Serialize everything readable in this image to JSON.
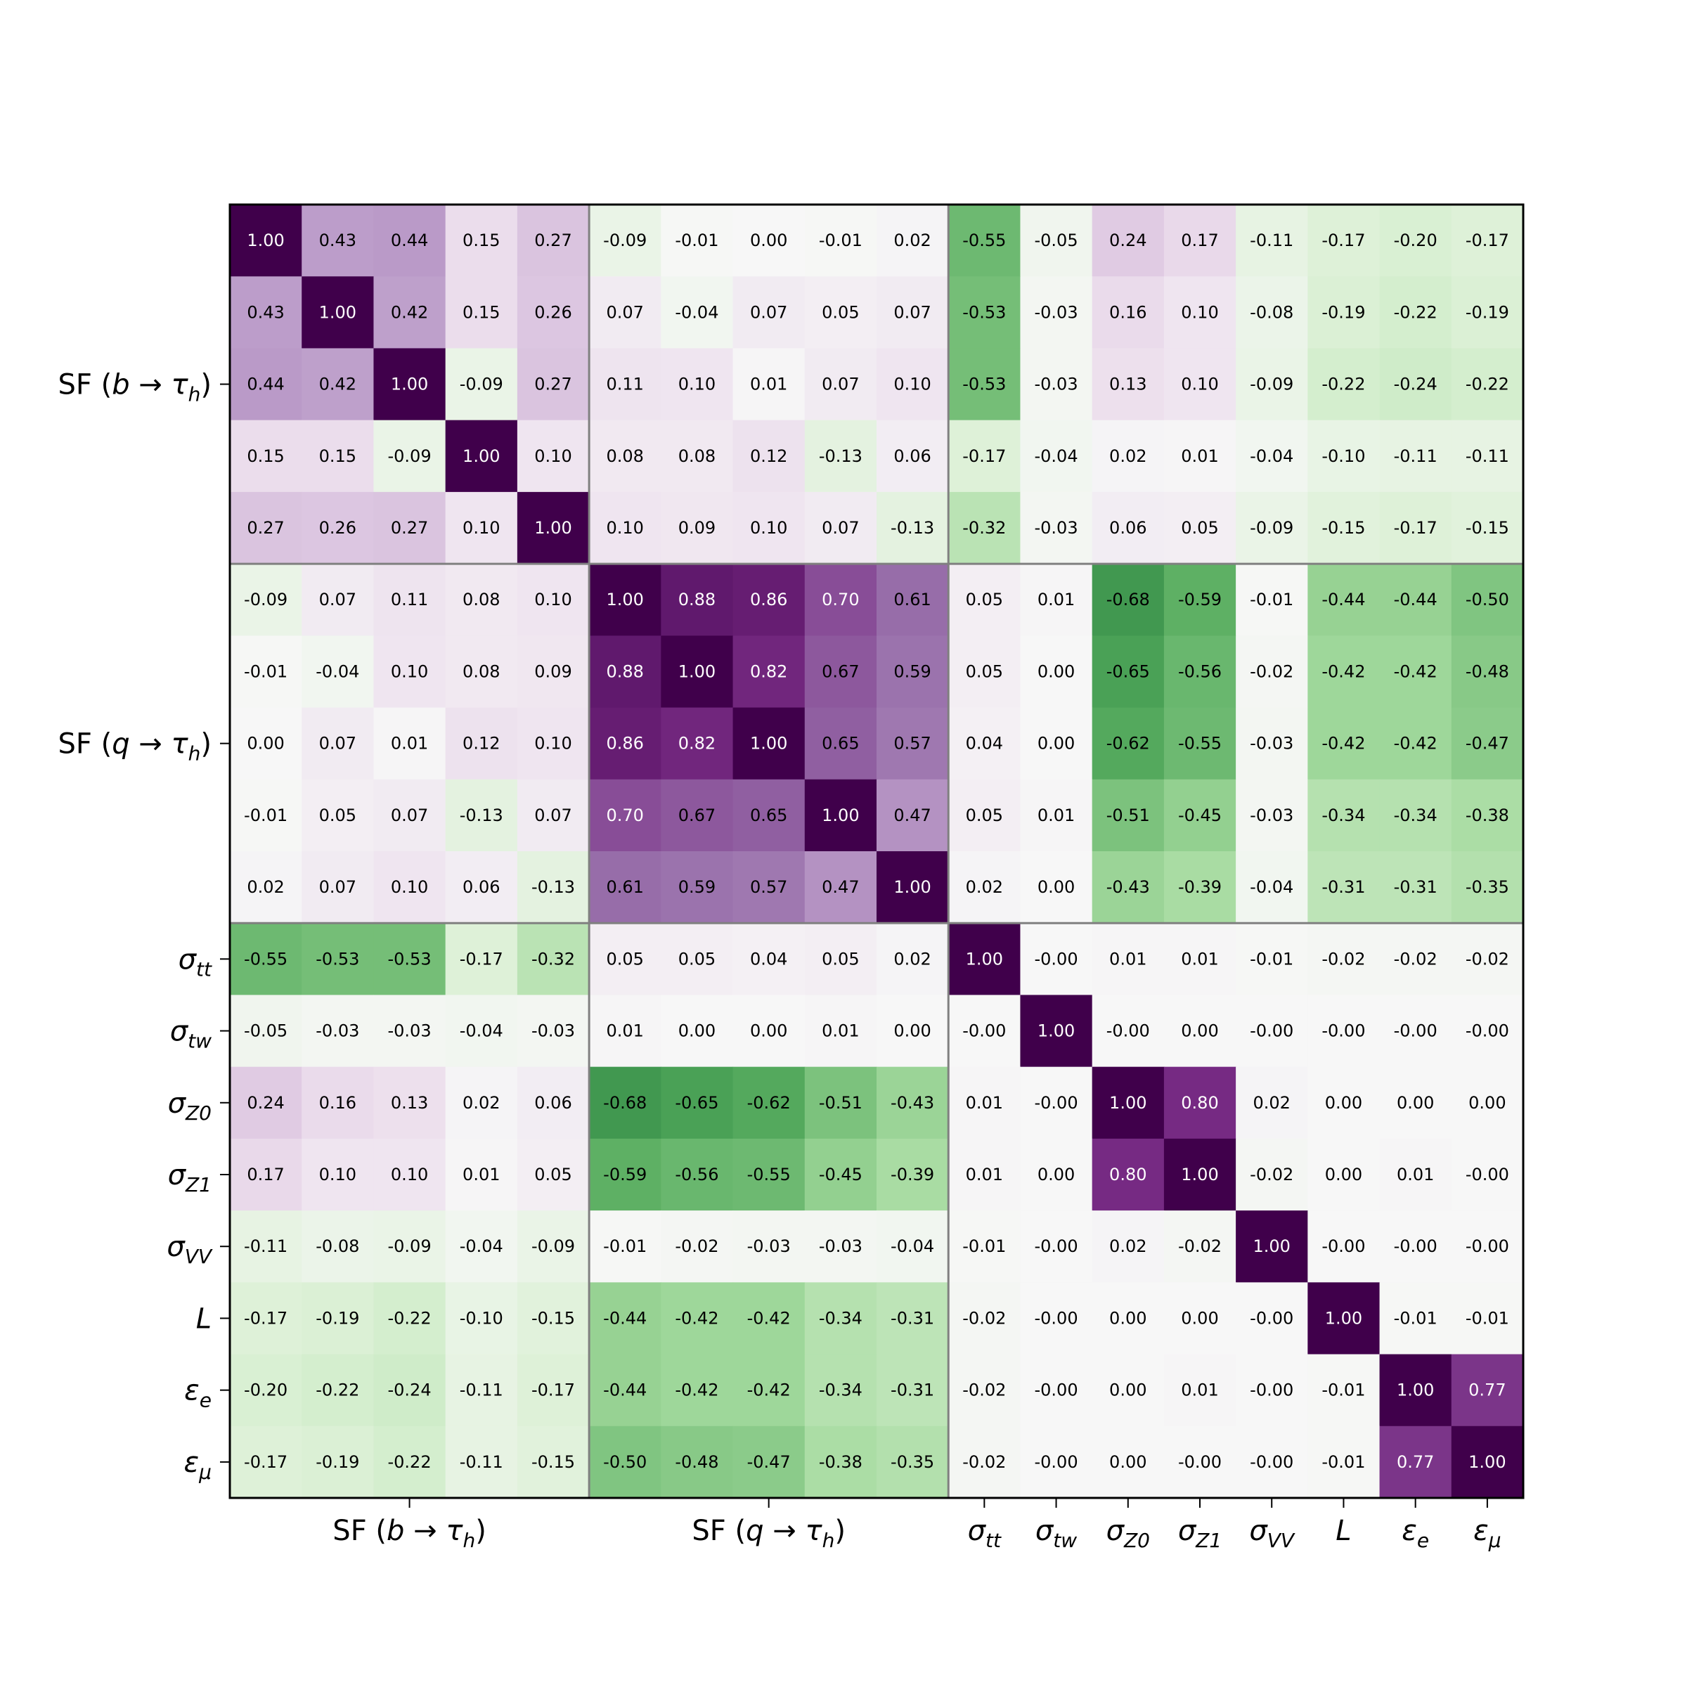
{
  "chart_data": {
    "type": "heatmap",
    "title": "",
    "colormap": "PRGn_r",
    "vmin": -1,
    "vmax": 1,
    "value_format": "2 decimals",
    "row_labels": [
      "",
      "",
      "SF (b → τh)",
      "",
      "",
      "",
      "",
      "SF (q → τh)",
      "",
      "",
      "σtt",
      "σtw",
      "σZ0",
      "σZ1",
      "σVV",
      "L",
      "εe",
      "εμ"
    ],
    "x_tick_labels": [
      "SF (b → τh)",
      "SF (q → τh)",
      "σtt",
      "σtw",
      "σZ0",
      "σZ1",
      "σVV",
      "L",
      "εe",
      "εμ"
    ],
    "y_tick_labels": [
      "SF (b → τh)",
      "SF (q → τh)",
      "σtt",
      "σtw",
      "σZ0",
      "σZ1",
      "σVV",
      "L",
      "εe",
      "εμ"
    ],
    "group_boundaries": [
      5,
      10
    ],
    "cell_labels": [
      [
        "1.00",
        "0.43",
        "0.44",
        "0.15",
        "0.27",
        "-0.09",
        "-0.01",
        "0.00",
        "-0.01",
        "0.02",
        "-0.55",
        "-0.05",
        "0.24",
        "0.17",
        "-0.11",
        "-0.17",
        "-0.20",
        "-0.17"
      ],
      [
        "0.43",
        "1.00",
        "0.42",
        "0.15",
        "0.26",
        "0.07",
        "-0.04",
        "0.07",
        "0.05",
        "0.07",
        "-0.53",
        "-0.03",
        "0.16",
        "0.10",
        "-0.08",
        "-0.19",
        "-0.22",
        "-0.19"
      ],
      [
        "0.44",
        "0.42",
        "1.00",
        "-0.09",
        "0.27",
        "0.11",
        "0.10",
        "0.01",
        "0.07",
        "0.10",
        "-0.53",
        "-0.03",
        "0.13",
        "0.10",
        "-0.09",
        "-0.22",
        "-0.24",
        "-0.22"
      ],
      [
        "0.15",
        "0.15",
        "-0.09",
        "1.00",
        "0.10",
        "0.08",
        "0.08",
        "0.12",
        "-0.13",
        "0.06",
        "-0.17",
        "-0.04",
        "0.02",
        "0.01",
        "-0.04",
        "-0.10",
        "-0.11",
        "-0.11"
      ],
      [
        "0.27",
        "0.26",
        "0.27",
        "0.10",
        "1.00",
        "0.10",
        "0.09",
        "0.10",
        "0.07",
        "-0.13",
        "-0.32",
        "-0.03",
        "0.06",
        "0.05",
        "-0.09",
        "-0.15",
        "-0.17",
        "-0.15"
      ],
      [
        "-0.09",
        "0.07",
        "0.11",
        "0.08",
        "0.10",
        "1.00",
        "0.88",
        "0.86",
        "0.70",
        "0.61",
        "0.05",
        "0.01",
        "-0.68",
        "-0.59",
        "-0.01",
        "-0.44",
        "-0.44",
        "-0.50"
      ],
      [
        "-0.01",
        "-0.04",
        "0.10",
        "0.08",
        "0.09",
        "0.88",
        "1.00",
        "0.82",
        "0.67",
        "0.59",
        "0.05",
        "0.00",
        "-0.65",
        "-0.56",
        "-0.02",
        "-0.42",
        "-0.42",
        "-0.48"
      ],
      [
        "0.00",
        "0.07",
        "0.01",
        "0.12",
        "0.10",
        "0.86",
        "0.82",
        "1.00",
        "0.65",
        "0.57",
        "0.04",
        "0.00",
        "-0.62",
        "-0.55",
        "-0.03",
        "-0.42",
        "-0.42",
        "-0.47"
      ],
      [
        "-0.01",
        "0.05",
        "0.07",
        "-0.13",
        "0.07",
        "0.70",
        "0.67",
        "0.65",
        "1.00",
        "0.47",
        "0.05",
        "0.01",
        "-0.51",
        "-0.45",
        "-0.03",
        "-0.34",
        "-0.34",
        "-0.38"
      ],
      [
        "0.02",
        "0.07",
        "0.10",
        "0.06",
        "-0.13",
        "0.61",
        "0.59",
        "0.57",
        "0.47",
        "1.00",
        "0.02",
        "0.00",
        "-0.43",
        "-0.39",
        "-0.04",
        "-0.31",
        "-0.31",
        "-0.35"
      ],
      [
        "-0.55",
        "-0.53",
        "-0.53",
        "-0.17",
        "-0.32",
        "0.05",
        "0.05",
        "0.04",
        "0.05",
        "0.02",
        "1.00",
        "-0.00",
        "0.01",
        "0.01",
        "-0.01",
        "-0.02",
        "-0.02",
        "-0.02"
      ],
      [
        "-0.05",
        "-0.03",
        "-0.03",
        "-0.04",
        "-0.03",
        "0.01",
        "0.00",
        "0.00",
        "0.01",
        "0.00",
        "-0.00",
        "1.00",
        "-0.00",
        "0.00",
        "-0.00",
        "-0.00",
        "-0.00",
        "-0.00"
      ],
      [
        "0.24",
        "0.16",
        "0.13",
        "0.02",
        "0.06",
        "-0.68",
        "-0.65",
        "-0.62",
        "-0.51",
        "-0.43",
        "0.01",
        "-0.00",
        "1.00",
        "0.80",
        "0.02",
        "0.00",
        "0.00",
        "0.00"
      ],
      [
        "0.17",
        "0.10",
        "0.10",
        "0.01",
        "0.05",
        "-0.59",
        "-0.56",
        "-0.55",
        "-0.45",
        "-0.39",
        "0.01",
        "0.00",
        "0.80",
        "1.00",
        "-0.02",
        "0.00",
        "0.01",
        "-0.00"
      ],
      [
        "-0.11",
        "-0.08",
        "-0.09",
        "-0.04",
        "-0.09",
        "-0.01",
        "-0.02",
        "-0.03",
        "-0.03",
        "-0.04",
        "-0.01",
        "-0.00",
        "0.02",
        "-0.02",
        "1.00",
        "-0.00",
        "-0.00",
        "-0.00"
      ],
      [
        "-0.17",
        "-0.19",
        "-0.22",
        "-0.10",
        "-0.15",
        "-0.44",
        "-0.42",
        "-0.42",
        "-0.34",
        "-0.31",
        "-0.02",
        "-0.00",
        "0.00",
        "0.00",
        "-0.00",
        "1.00",
        "-0.01",
        "-0.01"
      ],
      [
        "-0.20",
        "-0.22",
        "-0.24",
        "-0.11",
        "-0.17",
        "-0.44",
        "-0.42",
        "-0.42",
        "-0.34",
        "-0.31",
        "-0.02",
        "-0.00",
        "0.00",
        "0.01",
        "-0.00",
        "-0.01",
        "1.00",
        "0.77"
      ],
      [
        "-0.17",
        "-0.19",
        "-0.22",
        "-0.11",
        "-0.15",
        "-0.50",
        "-0.48",
        "-0.47",
        "-0.38",
        "-0.35",
        "-0.02",
        "-0.00",
        "0.00",
        "-0.00",
        "-0.00",
        "-0.01",
        "0.77",
        "1.00"
      ]
    ]
  }
}
